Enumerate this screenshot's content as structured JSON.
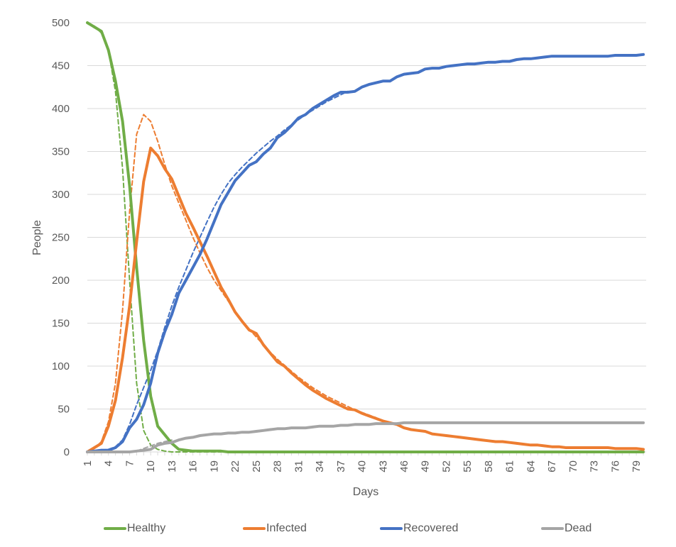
{
  "chart_data": {
    "type": "line",
    "title": "",
    "xlabel": "Days",
    "ylabel": "People",
    "ylim": [
      0,
      500
    ],
    "xlim": [
      1,
      80
    ],
    "grid": true,
    "legend_position": "bottom",
    "y_ticks": [
      "0",
      "50",
      "100",
      "150",
      "200",
      "250",
      "300",
      "350",
      "400",
      "450",
      "500"
    ],
    "x_ticks": [
      "1",
      "4",
      "7",
      "10",
      "13",
      "16",
      "19",
      "22",
      "25",
      "28",
      "31",
      "34",
      "37",
      "40",
      "43",
      "46",
      "49",
      "52",
      "55",
      "58",
      "61",
      "64",
      "67",
      "70",
      "73",
      "76",
      "79"
    ],
    "x": [
      1,
      2,
      3,
      4,
      5,
      6,
      7,
      8,
      9,
      10,
      11,
      12,
      13,
      14,
      15,
      16,
      17,
      18,
      19,
      20,
      21,
      22,
      23,
      24,
      25,
      26,
      27,
      28,
      29,
      30,
      31,
      32,
      33,
      34,
      35,
      36,
      37,
      38,
      39,
      40,
      41,
      42,
      43,
      44,
      45,
      46,
      47,
      48,
      49,
      50,
      51,
      52,
      53,
      54,
      55,
      56,
      57,
      58,
      59,
      60,
      61,
      62,
      63,
      64,
      65,
      66,
      67,
      68,
      69,
      70,
      71,
      72,
      73,
      74,
      75,
      76,
      77,
      78,
      79,
      80
    ],
    "series": [
      {
        "name": "Healthy",
        "color": "#70AD47",
        "style": "solid",
        "values": [
          500,
          495,
          490,
          468,
          432,
          385,
          310,
          215,
          130,
          65,
          30,
          20,
          10,
          3,
          2,
          1,
          1,
          1,
          1,
          1,
          0,
          0,
          0,
          0,
          0,
          0,
          0,
          0,
          0,
          0,
          0,
          0,
          0,
          0,
          0,
          0,
          0,
          0,
          0,
          0,
          0,
          0,
          0,
          0,
          0,
          0,
          0,
          0,
          0,
          0,
          0,
          0,
          0,
          0,
          0,
          0,
          0,
          0,
          0,
          0,
          0,
          0,
          0,
          0,
          0,
          0,
          0,
          0,
          0,
          0,
          0,
          0,
          0,
          0,
          0,
          0,
          0,
          0,
          0,
          0
        ]
      },
      {
        "name": "Infected",
        "color": "#ED7D31",
        "style": "solid",
        "values": [
          0,
          5,
          10,
          30,
          60,
          110,
          170,
          245,
          315,
          354,
          345,
          330,
          318,
          298,
          278,
          262,
          245,
          228,
          210,
          192,
          178,
          163,
          152,
          142,
          138,
          125,
          115,
          105,
          100,
          92,
          85,
          78,
          72,
          67,
          62,
          58,
          54,
          50,
          49,
          45,
          42,
          39,
          36,
          34,
          32,
          28,
          26,
          25,
          24,
          21,
          20,
          19,
          18,
          17,
          16,
          15,
          14,
          13,
          12,
          12,
          11,
          10,
          9,
          8,
          8,
          7,
          6,
          6,
          5,
          5,
          5,
          5,
          5,
          5,
          5,
          4,
          4,
          4,
          4,
          3
        ]
      },
      {
        "name": "Recovered",
        "color": "#4472C4",
        "style": "solid",
        "values": [
          0,
          1,
          2,
          2,
          5,
          12,
          28,
          38,
          55,
          80,
          115,
          140,
          160,
          185,
          200,
          215,
          230,
          248,
          268,
          288,
          302,
          316,
          325,
          334,
          338,
          347,
          354,
          366,
          372,
          380,
          389,
          393,
          400,
          405,
          410,
          415,
          419,
          419,
          420,
          425,
          428,
          430,
          432,
          432,
          437,
          440,
          441,
          442,
          446,
          447,
          447,
          449,
          450,
          451,
          452,
          452,
          453,
          454,
          454,
          455,
          455,
          457,
          458,
          458,
          459,
          460,
          461,
          461,
          461,
          461,
          461,
          461,
          461,
          461,
          461,
          462,
          462,
          462,
          462,
          463
        ]
      },
      {
        "name": "Dead",
        "color": "#A5A5A5",
        "style": "solid",
        "values": [
          0,
          0,
          0,
          0,
          0,
          0,
          0,
          1,
          2,
          3,
          8,
          10,
          11,
          14,
          16,
          17,
          19,
          20,
          21,
          21,
          22,
          22,
          23,
          23,
          24,
          25,
          26,
          27,
          27,
          28,
          28,
          28,
          29,
          30,
          30,
          30,
          31,
          31,
          32,
          32,
          32,
          33,
          33,
          33,
          33,
          34,
          34,
          34,
          34,
          34,
          34,
          34,
          34,
          34,
          34,
          34,
          34,
          34,
          34,
          34,
          34,
          34,
          34,
          34,
          34,
          34,
          34,
          34,
          34,
          34,
          34,
          34,
          34,
          34,
          34,
          34,
          34,
          34,
          34,
          34
        ]
      },
      {
        "name": "Healthy (model)",
        "color": "#70AD47",
        "style": "dashed",
        "in_legend": false,
        "values": [
          500,
          496,
          488,
          468,
          420,
          330,
          200,
          80,
          25,
          8,
          3,
          1,
          0,
          0,
          0,
          0,
          0,
          0,
          0,
          0
        ]
      },
      {
        "name": "Infected (model)",
        "color": "#ED7D31",
        "style": "dashed",
        "in_legend": false,
        "values": [
          0,
          4,
          12,
          35,
          80,
          165,
          280,
          370,
          393,
          385,
          362,
          335,
          310,
          290,
          270,
          250,
          232,
          215,
          200,
          188,
          176,
          164,
          153,
          143,
          134,
          125,
          116,
          108,
          101,
          94,
          87,
          81,
          75,
          70,
          65,
          61,
          57,
          53,
          49,
          46,
          43,
          40
        ]
      },
      {
        "name": "Recovered (model)",
        "color": "#4472C4",
        "style": "dashed",
        "in_legend": false,
        "values": [
          0,
          1,
          2,
          3,
          6,
          14,
          32,
          55,
          75,
          95,
          118,
          145,
          170,
          192,
          212,
          232,
          250,
          268,
          285,
          300,
          313,
          323,
          332,
          340,
          348,
          355,
          362,
          368,
          375,
          381,
          387,
          393,
          398,
          403,
          408,
          412,
          416,
          420
        ]
      },
      {
        "name": "Dead (model)",
        "color": "#A5A5A5",
        "style": "dashed",
        "in_legend": false,
        "values": [
          0,
          0,
          0,
          0,
          0,
          0,
          0,
          1,
          4,
          7,
          10,
          12,
          14
        ]
      }
    ]
  },
  "legend": {
    "items": [
      {
        "label": "Healthy",
        "color": "#70AD47"
      },
      {
        "label": "Infected",
        "color": "#ED7D31"
      },
      {
        "label": "Recovered",
        "color": "#4472C4"
      },
      {
        "label": "Dead",
        "color": "#A5A5A5"
      }
    ]
  },
  "axes": {
    "x_title": "Days",
    "y_title": "People"
  }
}
